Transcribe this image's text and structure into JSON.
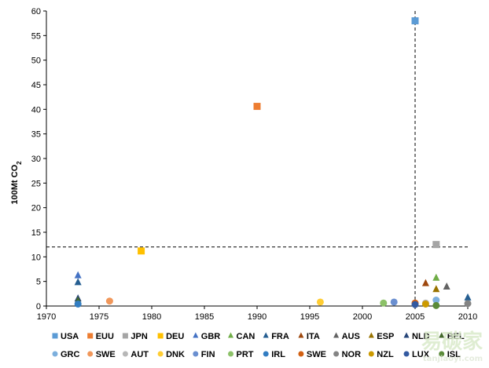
{
  "chart_data": {
    "type": "scatter",
    "title": "",
    "ylabel": "100Mt CO",
    "ylabel_sub": "2",
    "xlabel": "",
    "xlim": [
      1970,
      2010
    ],
    "ylim": [
      0,
      60
    ],
    "x_ticks": [
      1970,
      1975,
      1980,
      1985,
      1990,
      1995,
      2000,
      2005,
      2010
    ],
    "y_ticks": [
      0,
      5,
      10,
      15,
      20,
      25,
      30,
      35,
      40,
      45,
      50,
      55,
      60
    ],
    "grid": false,
    "legend_position": "bottom",
    "reference_lines": [
      {
        "orientation": "horizontal",
        "y": 12,
        "style": "dashed"
      },
      {
        "orientation": "vertical",
        "x": 2005,
        "style": "dashed"
      }
    ],
    "series": [
      {
        "name": "USA",
        "marker": "square",
        "color": "#5b9bd5",
        "points": [
          [
            2005,
            58
          ]
        ]
      },
      {
        "name": "EUU",
        "marker": "square",
        "color": "#ed7d31",
        "points": [
          [
            1990,
            40.6
          ]
        ]
      },
      {
        "name": "JPN",
        "marker": "square",
        "color": "#a5a5a5",
        "points": [
          [
            2007,
            12.5
          ]
        ]
      },
      {
        "name": "DEU",
        "marker": "square",
        "color": "#ffc000",
        "points": [
          [
            1979,
            11.2
          ]
        ]
      },
      {
        "name": "GBR",
        "marker": "triangle",
        "color": "#4472c4",
        "points": [
          [
            1973,
            6.2
          ]
        ]
      },
      {
        "name": "CAN",
        "marker": "triangle",
        "color": "#70ad47",
        "points": [
          [
            2007,
            5.7
          ]
        ]
      },
      {
        "name": "FRA",
        "marker": "triangle",
        "color": "#255e91",
        "points": [
          [
            1973,
            4.8
          ],
          [
            2010,
            1.7
          ]
        ]
      },
      {
        "name": "ITA",
        "marker": "triangle",
        "color": "#9e480e",
        "points": [
          [
            2006,
            4.6
          ]
        ]
      },
      {
        "name": "AUS",
        "marker": "triangle",
        "color": "#636363",
        "points": [
          [
            2008,
            3.9
          ]
        ]
      },
      {
        "name": "ESP",
        "marker": "triangle",
        "color": "#997300",
        "points": [
          [
            2007,
            3.4
          ]
        ]
      },
      {
        "name": "NLD",
        "marker": "triangle",
        "color": "#264478",
        "points": [
          [
            1973,
            1.5
          ]
        ]
      },
      {
        "name": "BEL",
        "marker": "triangle",
        "color": "#43682b",
        "points": [
          [
            1973,
            1.1
          ]
        ]
      },
      {
        "name": "GRC",
        "marker": "circle",
        "color": "#7cafdd",
        "points": [
          [
            2007,
            1.2
          ]
        ]
      },
      {
        "name": "SWE",
        "marker": "circle",
        "color": "#f1975a",
        "points": [
          [
            1976,
            1.0
          ]
        ]
      },
      {
        "name": "AUT",
        "marker": "circle",
        "color": "#b7b7b7",
        "points": [
          [
            2006,
            0.6
          ]
        ]
      },
      {
        "name": "DNK",
        "marker": "circle",
        "color": "#ffcd33",
        "points": [
          [
            1996,
            0.8
          ]
        ]
      },
      {
        "name": "FIN",
        "marker": "circle",
        "color": "#6a8fd0",
        "points": [
          [
            2003,
            0.8
          ]
        ]
      },
      {
        "name": "PRT",
        "marker": "circle",
        "color": "#8cc168",
        "points": [
          [
            2002,
            0.6
          ]
        ]
      },
      {
        "name": "IRL",
        "marker": "circle",
        "color": "#327dc2",
        "points": [
          [
            1973,
            0.4
          ]
        ]
      },
      {
        "name": "SWE",
        "marker": "circle",
        "color": "#d26012",
        "points": [
          [
            2005,
            0.6
          ]
        ]
      },
      {
        "name": "NOR",
        "marker": "circle",
        "color": "#848484",
        "points": [
          [
            2010,
            0.5
          ]
        ]
      },
      {
        "name": "NZL",
        "marker": "circle",
        "color": "#cc9a00",
        "points": [
          [
            2006,
            0.4
          ]
        ]
      },
      {
        "name": "LUX",
        "marker": "circle",
        "color": "#335aa1",
        "points": [
          [
            2005,
            0.3
          ]
        ]
      },
      {
        "name": "ISL",
        "marker": "circle",
        "color": "#5a8a39",
        "points": [
          [
            2007,
            0.1
          ]
        ]
      }
    ]
  }
}
